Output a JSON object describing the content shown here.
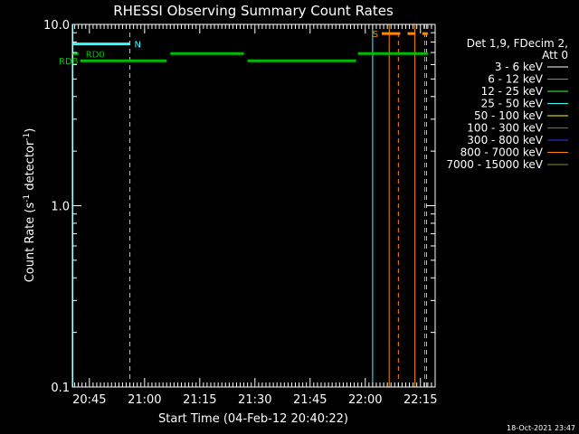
{
  "chart_data": {
    "type": "line",
    "title": "RHESSI Observing Summary Count Rates",
    "xlabel": "Start Time (04-Feb-12 20:40:22)",
    "ylabel_base": "Count Rate (s",
    "ylabel_sup1": "-1",
    "ylabel_mid": " detector",
    "ylabel_sup2": "-1",
    "ylabel_end": ")",
    "yscale": "log",
    "ylim": [
      0.1,
      10.0
    ],
    "xlim": [
      "20:40:22",
      "22:19:00"
    ],
    "xticks": [
      "20:45",
      "21:00",
      "21:15",
      "21:30",
      "21:45",
      "22:00",
      "22:15"
    ],
    "yticks": [
      "0.1",
      "1.0",
      "10.0"
    ],
    "grid": false,
    "legend_placement": "right",
    "legend_header": [
      "Det 1,9, FDecim 2,",
      "Att 0"
    ],
    "series": [
      {
        "name": "3 - 6 keV",
        "color": "#ffffff",
        "values": []
      },
      {
        "name": "6 - 12 keV",
        "color": "#ff33ff",
        "values": []
      },
      {
        "name": "12 - 25 keV",
        "color": "#33ff33",
        "values": []
      },
      {
        "name": "25 - 50 keV",
        "color": "#33ffff",
        "values": []
      },
      {
        "name": "50 - 100 keV",
        "color": "#ffff00",
        "values": []
      },
      {
        "name": "100 - 300 keV",
        "color": "#ff3333",
        "values": []
      },
      {
        "name": "300 - 800 keV",
        "color": "#3333ff",
        "values": []
      },
      {
        "name": "800 - 7000 keV",
        "color": "#ff8800",
        "values": []
      },
      {
        "name": "7000 - 15000 keV",
        "color": "#998800",
        "values": []
      }
    ],
    "flags": [
      {
        "label": "N",
        "color": "#33ffff",
        "segments": [
          [
            "20:40:22",
            "20:56:00"
          ]
        ],
        "label_at": "20:56:00",
        "level": 7.8
      },
      {
        "label": "S",
        "color": "#ff8800",
        "segments": [
          [
            "22:04:30",
            "22:09:30"
          ],
          [
            "22:11:30",
            "22:13:30"
          ],
          [
            "22:15:30",
            "22:17:00"
          ]
        ],
        "label_at": "22:04:30",
        "level": 8.9
      },
      {
        "label": "RD0",
        "color": "#00bb00",
        "segments": [
          [
            "20:40:22",
            "20:42:00"
          ],
          [
            "21:07:00",
            "21:27:00"
          ],
          [
            "21:58:00",
            "22:17:00"
          ]
        ],
        "label_at": "20:44:00",
        "level": 6.9
      },
      {
        "label": "RDB",
        "color": "#00bb00",
        "segments": [
          [
            "20:42:30",
            "21:06:00"
          ],
          [
            "21:28:00",
            "21:57:30"
          ]
        ],
        "label_at": "20:40:22",
        "level": 6.3
      }
    ],
    "vlines": [
      {
        "time": "20:40:30",
        "color": "#33ffff",
        "style": "solid"
      },
      {
        "time": "20:56:00",
        "color": "#33ffff",
        "style": "dashed"
      },
      {
        "time": "22:02:00",
        "color": "#33ffff",
        "style": "solid"
      },
      {
        "time": "22:16:40",
        "color": "#33ffff",
        "style": "dashed"
      },
      {
        "time": "22:06:30",
        "color": "#ff8800",
        "style": "solid"
      },
      {
        "time": "22:09:00",
        "color": "#ff8800",
        "style": "dashed"
      },
      {
        "time": "22:13:30",
        "color": "#ff8800",
        "style": "solid"
      },
      {
        "time": "22:16:10",
        "color": "#ff8800",
        "style": "dashed"
      }
    ]
  },
  "footer": {
    "timestamp": "18-Oct-2021 23:47"
  }
}
